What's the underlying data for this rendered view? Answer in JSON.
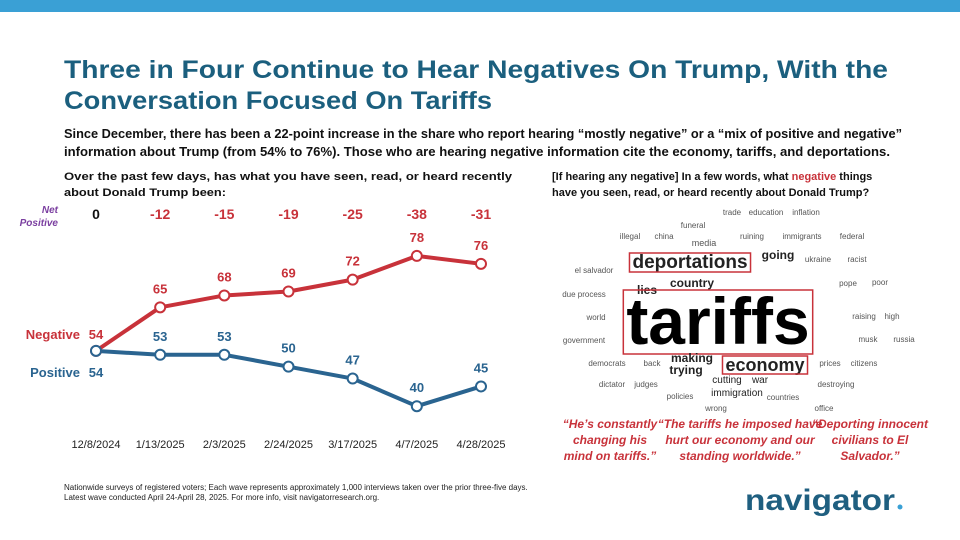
{
  "title_lines": [
    "Three in Four Continue to Hear Negatives On Trump, With the",
    "Conversation Focused On Tariffs"
  ],
  "subtitle_lines": [
    "Since December, there has been a 22-point increase in the share who report hearing “mostly negative” or a “mix of positive and negative”",
    "information about Trump (from 54% to 76%). Those who are hearing negative information cite the economy, tariffs, and deportations."
  ],
  "chart_data": {
    "type": "line",
    "question_lines": [
      "Over the past few days, has what you have seen, read, or heard recently",
      "about Donald Trump been:"
    ],
    "categories": [
      "12/8/2024",
      "1/13/2025",
      "2/3/2025",
      "2/24/2025",
      "3/17/2025",
      "4/7/2025",
      "4/28/2025"
    ],
    "series": [
      {
        "name": "Negative",
        "color": "#c8323a",
        "values": [
          54,
          65,
          68,
          69,
          72,
          78,
          76
        ]
      },
      {
        "name": "Positive",
        "color": "#2a6490",
        "values": [
          54,
          53,
          53,
          50,
          47,
          40,
          45
        ]
      }
    ],
    "net_positive": {
      "label_lines": [
        "Net",
        "Positive"
      ],
      "label_color": "#7b3fa0",
      "values": [
        0,
        -12,
        -15,
        -19,
        -25,
        -38,
        -31
      ],
      "color": "#111111",
      "negative_color": "#c8323a"
    },
    "ylim": [
      35,
      80
    ]
  },
  "word_cloud": {
    "question_lines": [
      [
        "[If hearing any negative] In a few words, what ",
        "negative",
        " things"
      ],
      [
        "have you seen, read, or heard recently about Donald Trump?"
      ]
    ],
    "emphasis_color": "#c8323a",
    "words": [
      "trade",
      "education",
      "inflation",
      "funeral",
      "illegal",
      "china",
      "media",
      "ruining",
      "immigrants",
      "federal",
      "deportations",
      "going",
      "ukraine",
      "racist",
      "el salvador",
      "country",
      "pope",
      "poor",
      "lies",
      "due process",
      "tariffs",
      "world",
      "raising",
      "high",
      "government",
      "musk",
      "russia",
      "democrats",
      "back",
      "making",
      "trying",
      "economy",
      "prices",
      "citizens",
      "cutting",
      "war",
      "dictator",
      "judges",
      "immigration",
      "destroying",
      "policies",
      "countries",
      "wrong",
      "office"
    ],
    "quotes": [
      [
        "“He’s constantly",
        "changing his",
        "mind on tariffs.”"
      ],
      [
        "“The tariffs he imposed have",
        "hurt our economy and our",
        "standing worldwide.”"
      ],
      [
        "“Deporting innocent",
        "civilians to El",
        "Salvador.”"
      ]
    ]
  },
  "footnote_lines": [
    "Nationwide surveys of registered voters; Each wave represents approximately 1,000 interviews taken over the prior three-five days.",
    "Latest wave conducted April 24-April 28, 2025. For more info, visit navigatorresearch.org."
  ],
  "logo": "navigator"
}
